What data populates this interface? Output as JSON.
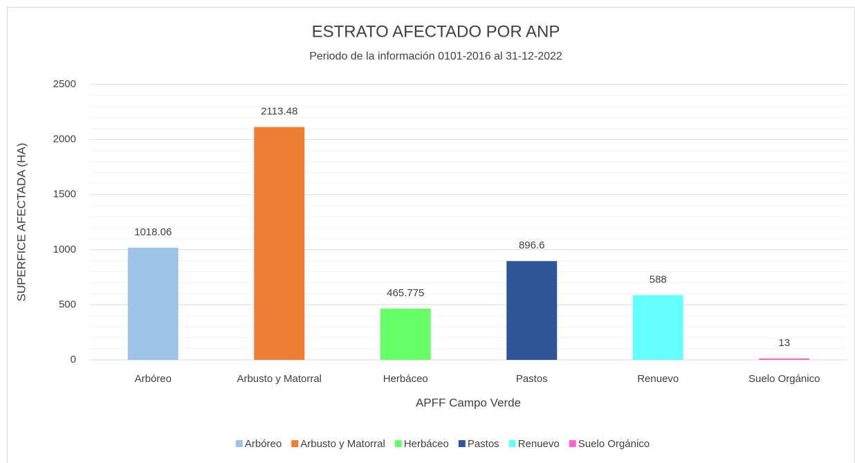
{
  "chart_data": {
    "type": "bar",
    "title": "ESTRATO AFECTADO POR ANP",
    "subtitle": "Periodo de la información 0101-2016 al 31-12-2022",
    "x_label": "APFF Campo Verde",
    "y_label": "SUPERFICE AFECTADA (HA)",
    "categories": [
      "Arbóreo",
      "Arbusto y Matorral",
      "Herbáceo",
      "Pastos",
      "Renuevo",
      "Suelo Orgánico"
    ],
    "values": [
      1018.06,
      2113.48,
      465.775,
      896.6,
      588,
      13
    ],
    "colors": [
      "#9dc3e6",
      "#ed7d31",
      "#66ff66",
      "#2f5597",
      "#66ffff",
      "#ff66cc"
    ],
    "ylim": [
      0,
      2500
    ],
    "yticks": [
      0,
      500,
      1000,
      1500,
      2000,
      2500
    ],
    "yminorticks": [
      100,
      200,
      300,
      400,
      600,
      700,
      800,
      900,
      1100,
      1200,
      1300,
      1400,
      1600,
      1700,
      1800,
      1900,
      2100,
      2200,
      2300,
      2400
    ],
    "grid": true,
    "legend": "bottom"
  }
}
